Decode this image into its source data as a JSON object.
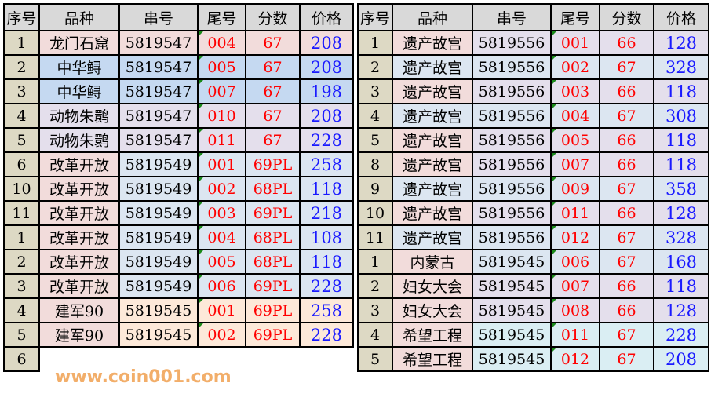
{
  "colors": {
    "pink": "#f2dcdb",
    "blue": "#c5d9f1",
    "lavender": "#e4dfec",
    "lightblue": "#dce6f1",
    "peach": "#fde9d9",
    "cyan": "#daeef3"
  },
  "headers": [
    "序号",
    "品种",
    "串号",
    "尾号",
    "分数",
    "价格"
  ],
  "left": {
    "rows": [
      {
        "seq": "1",
        "name": "龙门石窟",
        "serial": "5819547",
        "tail": "004",
        "score": "67",
        "price": "208",
        "bg": "pink",
        "namebg": "pink"
      },
      {
        "seq": "2",
        "name": "中华鲟",
        "serial": "5819547",
        "tail": "005",
        "score": "67",
        "price": "208",
        "bg": "blue",
        "namebg": "blue"
      },
      {
        "seq": "3",
        "name": "中华鲟",
        "serial": "5819547",
        "tail": "007",
        "score": "67",
        "price": "198",
        "bg": "blue",
        "namebg": "blue"
      },
      {
        "seq": "4",
        "name": "动物朱鹮",
        "serial": "5819547",
        "tail": "010",
        "score": "67",
        "price": "208",
        "bg": "lavender",
        "namebg": "lavender"
      },
      {
        "seq": "5",
        "name": "动物朱鹮",
        "serial": "5819547",
        "tail": "011",
        "score": "67",
        "price": "228",
        "bg": "lavender",
        "namebg": "lavender"
      },
      {
        "seq": "6",
        "name": "改革开放",
        "serial": "5819549",
        "tail": "001",
        "score": "69PL",
        "price": "258",
        "bg": "lightblue",
        "namebg": "pink"
      },
      {
        "seq": "10",
        "name": "改革开放",
        "serial": "5819549",
        "tail": "002",
        "score": "68PL",
        "price": "118",
        "bg": "lightblue",
        "namebg": "pink"
      },
      {
        "seq": "11",
        "name": "改革开放",
        "serial": "5819549",
        "tail": "003",
        "score": "69PL",
        "price": "218",
        "bg": "lightblue",
        "namebg": "pink"
      },
      {
        "seq": "1",
        "name": "改革开放",
        "serial": "5819549",
        "tail": "004",
        "score": "68PL",
        "price": "108",
        "bg": "lightblue",
        "namebg": "pink"
      },
      {
        "seq": "2",
        "name": "改革开放",
        "serial": "5819549",
        "tail": "005",
        "score": "68PL",
        "price": "118",
        "bg": "lightblue",
        "namebg": "pink"
      },
      {
        "seq": "3",
        "name": "改革开放",
        "serial": "5819549",
        "tail": "006",
        "score": "69PL",
        "price": "228",
        "bg": "lightblue",
        "namebg": "pink"
      },
      {
        "seq": "4",
        "name": "建军90",
        "serial": "5819545",
        "tail": "001",
        "score": "69PL",
        "price": "258",
        "bg": "peach",
        "namebg": "pink"
      },
      {
        "seq": "5",
        "name": "建军90",
        "serial": "5819545",
        "tail": "002",
        "score": "69PL",
        "price": "228",
        "bg": "peach",
        "namebg": "pink"
      },
      {
        "seq": "6"
      }
    ]
  },
  "right": {
    "rows": [
      {
        "seq": "1",
        "name": "遗产故宫",
        "serial": "5819556",
        "tail": "001",
        "score": "66",
        "price": "128",
        "bg": "lavender",
        "namebg": "pink"
      },
      {
        "seq": "2",
        "name": "遗产故宫",
        "serial": "5819556",
        "tail": "002",
        "score": "67",
        "price": "328",
        "bg": "lightblue",
        "namebg": "lightblue"
      },
      {
        "seq": "3",
        "name": "遗产故宫",
        "serial": "5819556",
        "tail": "003",
        "score": "66",
        "price": "118",
        "bg": "lavender",
        "namebg": "pink"
      },
      {
        "seq": "4",
        "name": "遗产故宫",
        "serial": "5819556",
        "tail": "004",
        "score": "67",
        "price": "308",
        "bg": "lightblue",
        "namebg": "lightblue"
      },
      {
        "seq": "5",
        "name": "遗产故宫",
        "serial": "5819556",
        "tail": "005",
        "score": "66",
        "price": "118",
        "bg": "lavender",
        "namebg": "pink"
      },
      {
        "seq": "8",
        "name": "遗产故宫",
        "serial": "5819556",
        "tail": "007",
        "score": "66",
        "price": "118",
        "bg": "lavender",
        "namebg": "pink"
      },
      {
        "seq": "9",
        "name": "遗产故宫",
        "serial": "5819556",
        "tail": "009",
        "score": "67",
        "price": "358",
        "bg": "lightblue",
        "namebg": "lightblue"
      },
      {
        "seq": "10",
        "name": "遗产故宫",
        "serial": "5819556",
        "tail": "011",
        "score": "66",
        "price": "128",
        "bg": "lavender",
        "namebg": "pink"
      },
      {
        "seq": "11",
        "name": "遗产故宫",
        "serial": "5819556",
        "tail": "012",
        "score": "67",
        "price": "328",
        "bg": "lightblue",
        "namebg": "lightblue"
      },
      {
        "seq": "1",
        "name": "内蒙古",
        "serial": "5819545",
        "tail": "006",
        "score": "67",
        "price": "168",
        "bg": "lightblue",
        "namebg": "pink"
      },
      {
        "seq": "2",
        "name": "妇女大会",
        "serial": "5819545",
        "tail": "007",
        "score": "66",
        "price": "118",
        "bg": "lavender",
        "namebg": "pink"
      },
      {
        "seq": "3",
        "name": "妇女大会",
        "serial": "5819545",
        "tail": "008",
        "score": "66",
        "price": "128",
        "bg": "lavender",
        "namebg": "pink"
      },
      {
        "seq": "4",
        "name": "希望工程",
        "serial": "5819545",
        "tail": "011",
        "score": "67",
        "price": "228",
        "bg": "cyan",
        "namebg": "pink"
      },
      {
        "seq": "5",
        "name": "希望工程",
        "serial": "5819545",
        "tail": "012",
        "score": "67",
        "price": "208",
        "bg": "cyan",
        "namebg": "pink"
      }
    ]
  },
  "watermark": "www.coin001.com"
}
